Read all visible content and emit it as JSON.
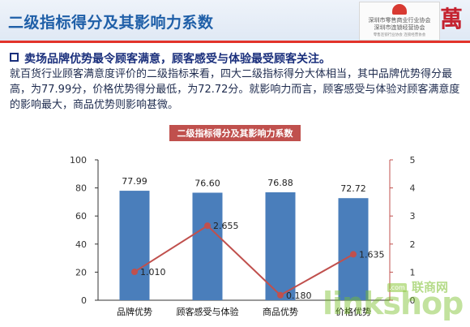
{
  "header": {
    "title": "二级指标得分及其影响力系数",
    "org_line1": "深圳市零售商业行业协会",
    "org_line2": "深圳市连锁经营协会",
    "org_line3": "零售连锁行业协会 连锁经营协会",
    "brand_char": "萬"
  },
  "summary": {
    "headline": "卖场品牌优势最令顾客满意，顾客感受与体验最受顾客关注。",
    "body": "就百货行业顾客满意度评价的二级指标来看，四大二级指标得分大体相当，其中品牌优势得分最高，为77.99分，价格优势得分最低，为72.72分。就影响力而言，顾客感受与体验对顾客满意度的影响最大，商品优势则影响甚微。"
  },
  "watermark": {
    "link_text": "linkshop",
    "com_text": ".com",
    "cn_text": "联商网"
  },
  "colors": {
    "bar": "#4a7ebb",
    "line": "#c0504d",
    "chart_title_bg": "#c0504d",
    "header_text": "#1f5fa8"
  },
  "chart_data": {
    "type": "bar",
    "title": "二级指标得分及其影响力系数",
    "categories": [
      "品牌优势",
      "顾客感受与体验",
      "商品优势",
      "价格优势"
    ],
    "series": [
      {
        "type": "bar",
        "axis": "left",
        "values": [
          77.99,
          76.6,
          76.88,
          72.72
        ],
        "labels": [
          "77.99",
          "76.60",
          "76.88",
          "72.72"
        ]
      },
      {
        "type": "line",
        "axis": "right",
        "values": [
          1.01,
          2.655,
          0.18,
          1.635
        ],
        "labels": [
          "1.010",
          "2.655",
          "0.180",
          "1.635"
        ]
      }
    ],
    "y_left": {
      "min": 0,
      "max": 100,
      "ticks": [
        "0",
        "20",
        "40",
        "60",
        "80",
        "100"
      ]
    },
    "y_right": {
      "min": 0,
      "max": 5,
      "ticks": [
        "0",
        "1",
        "2",
        "3",
        "4",
        "5"
      ]
    },
    "grid": false,
    "legend": "none"
  }
}
